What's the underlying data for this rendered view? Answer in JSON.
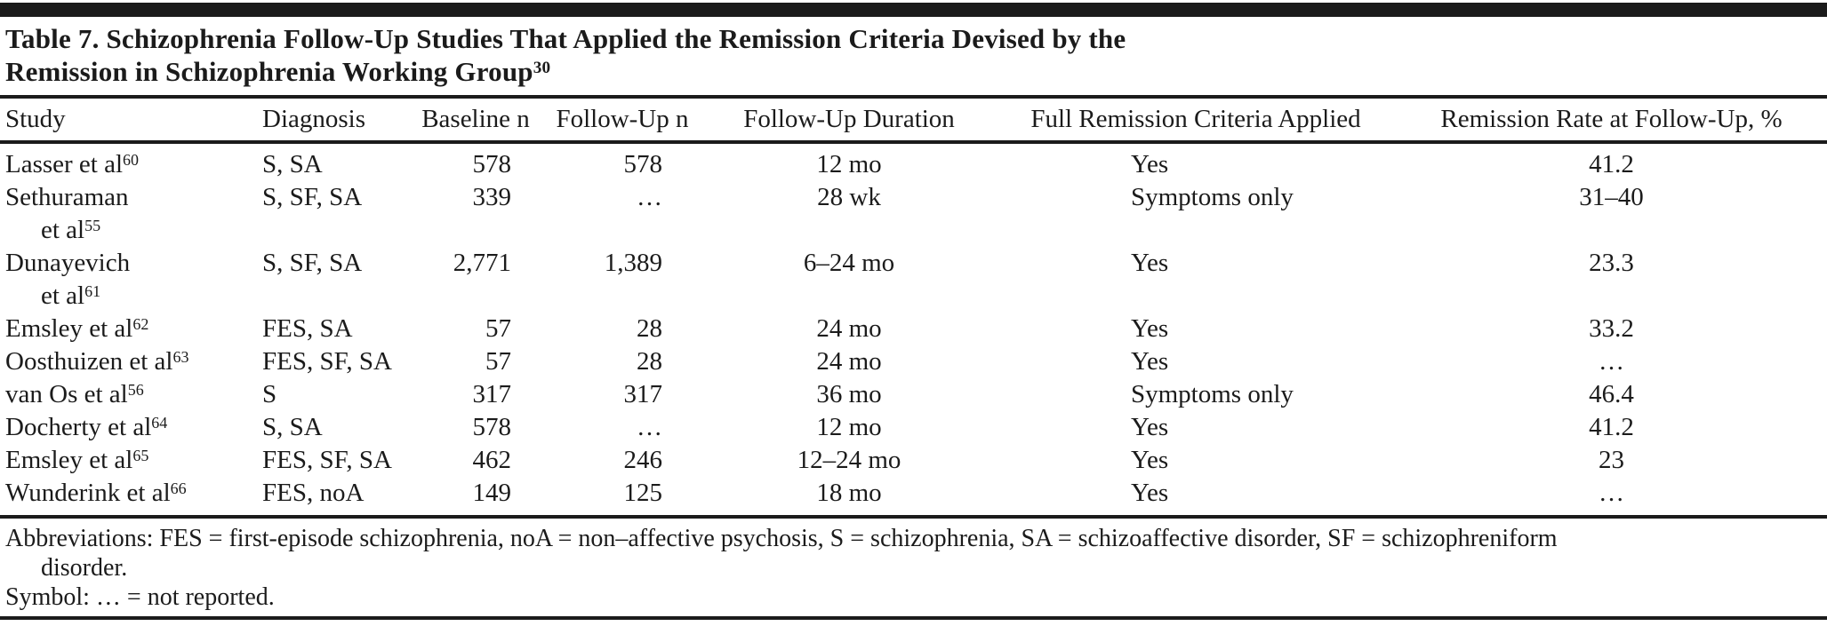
{
  "colors": {
    "ink": "#1b1b1b",
    "background": "#ffffff"
  },
  "title": {
    "line1": "Table 7. Schizophrenia Follow-Up Studies That Applied the Remission Criteria Devised by the",
    "line2": "Remission in Schizophrenia Working Group",
    "reference": "30"
  },
  "table": {
    "columns": [
      "Study",
      "Diagnosis",
      "Baseline n",
      "Follow-Up n",
      "Follow-Up Duration",
      "Full Remission Criteria Applied",
      "Remission Rate at Follow-Up, %"
    ],
    "rows": [
      {
        "study_line1": "Lasser et al",
        "study_ref1": "60",
        "study_line2": "",
        "study_ref2": "",
        "diagnosis": "S, SA",
        "baseline_n": "578",
        "followup_n": "578",
        "duration": "12 mo",
        "criteria": "Yes",
        "remission_rate": "41.2"
      },
      {
        "study_line1": "Sethuraman",
        "study_ref1": "",
        "study_line2": "et al",
        "study_ref2": "55",
        "diagnosis": "S, SF, SA",
        "baseline_n": "339",
        "followup_n": "…",
        "duration": "28 wk",
        "criteria": "Symptoms only",
        "remission_rate": "31–40"
      },
      {
        "study_line1": "Dunayevich",
        "study_ref1": "",
        "study_line2": "et al",
        "study_ref2": "61",
        "diagnosis": "S, SF, SA",
        "baseline_n": "2,771",
        "followup_n": "1,389",
        "duration": "6–24 mo",
        "criteria": "Yes",
        "remission_rate": "23.3"
      },
      {
        "study_line1": "Emsley et al",
        "study_ref1": "62",
        "study_line2": "",
        "study_ref2": "",
        "diagnosis": "FES, SA",
        "baseline_n": "57",
        "followup_n": "28",
        "duration": "24 mo",
        "criteria": "Yes",
        "remission_rate": "33.2"
      },
      {
        "study_line1": "Oosthuizen et al",
        "study_ref1": "63",
        "study_line2": "",
        "study_ref2": "",
        "diagnosis": "FES, SF, SA",
        "baseline_n": "57",
        "followup_n": "28",
        "duration": "24 mo",
        "criteria": "Yes",
        "remission_rate": "…"
      },
      {
        "study_line1": "van Os et al",
        "study_ref1": "56",
        "study_line2": "",
        "study_ref2": "",
        "diagnosis": "S",
        "baseline_n": "317",
        "followup_n": "317",
        "duration": "36 mo",
        "criteria": "Symptoms only",
        "remission_rate": "46.4"
      },
      {
        "study_line1": "Docherty et al",
        "study_ref1": "64",
        "study_line2": "",
        "study_ref2": "",
        "diagnosis": "S, SA",
        "baseline_n": "578",
        "followup_n": "…",
        "duration": "12 mo",
        "criteria": "Yes",
        "remission_rate": "41.2"
      },
      {
        "study_line1": "Emsley et al",
        "study_ref1": "65",
        "study_line2": "",
        "study_ref2": "",
        "diagnosis": "FES, SF, SA",
        "baseline_n": "462",
        "followup_n": "246",
        "duration": "12–24 mo",
        "criteria": "Yes",
        "remission_rate": "23"
      },
      {
        "study_line1": "Wunderink et al",
        "study_ref1": "66",
        "study_line2": "",
        "study_ref2": "",
        "diagnosis": "FES, noA",
        "baseline_n": "149",
        "followup_n": "125",
        "duration": "18 mo",
        "criteria": "Yes",
        "remission_rate": "…"
      }
    ]
  },
  "footnotes": {
    "abbreviations_line1": "Abbreviations: FES = first-episode schizophrenia, noA = non–affective psychosis, S = schizophrenia, SA = schizoaffective disorder, SF = schizophreniform",
    "abbreviations_line2": "disorder.",
    "symbol": "Symbol: … = not reported."
  }
}
